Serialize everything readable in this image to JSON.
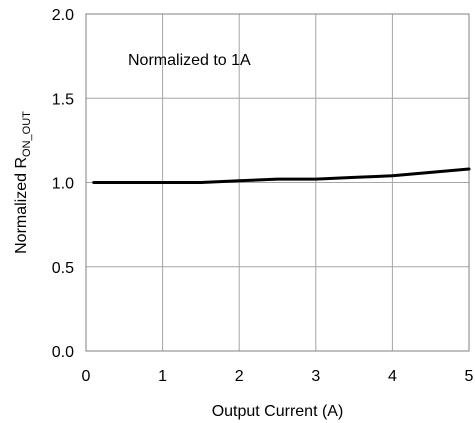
{
  "chart_data": {
    "type": "line",
    "title": "",
    "xlabel": "Output Current (A)",
    "ylabel": {
      "main": "Normalized R",
      "subscript": "ON_OUT"
    },
    "annotation": "Normalized to 1A",
    "xlim": [
      0,
      5
    ],
    "ylim": [
      0,
      2
    ],
    "xticks": [
      0,
      1,
      2,
      3,
      4,
      5
    ],
    "yticks": [
      0,
      0.5,
      1,
      1.5,
      2
    ],
    "xtick_labels": [
      "0",
      "1",
      "2",
      "3",
      "4",
      "5"
    ],
    "ytick_labels": [
      "0.0",
      "0.5",
      "1.0",
      "1.5",
      "2.0"
    ],
    "grid": true,
    "legend": "none",
    "series": [
      {
        "color": "#000000",
        "x": [
          0.1,
          0.5,
          1.0,
          1.5,
          2.0,
          2.5,
          3.0,
          3.5,
          4.0,
          4.5,
          5.0
        ],
        "y": [
          1.0,
          1.0,
          1.0,
          1.0,
          1.01,
          1.02,
          1.02,
          1.03,
          1.04,
          1.06,
          1.08
        ]
      }
    ]
  }
}
